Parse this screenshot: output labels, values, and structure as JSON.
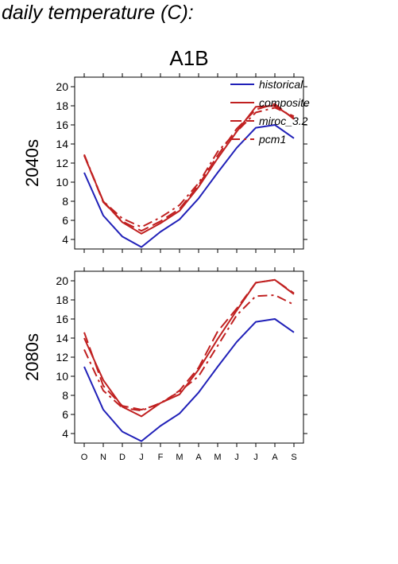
{
  "page_title": "daily temperature (C):",
  "colors": {
    "historical": "#2020b8",
    "composite": "#c02020",
    "miroc": "#c02020",
    "pcm1": "#c02020",
    "axis": "#000000"
  },
  "chart_data": [
    {
      "type": "line",
      "title": "A1B",
      "ylabel": "2040s",
      "xlabel": "",
      "categories": [
        "O",
        "N",
        "D",
        "J",
        "F",
        "M",
        "A",
        "M",
        "J",
        "J",
        "A",
        "S"
      ],
      "ylim": [
        3,
        21
      ],
      "yticks": [
        4,
        6,
        8,
        10,
        12,
        14,
        16,
        18,
        20
      ],
      "grid": false,
      "legend_position": "top-right",
      "series": [
        {
          "name": "historical",
          "style": "solid",
          "color": "#2020b8",
          "values": [
            11.0,
            6.5,
            4.3,
            3.2,
            4.8,
            6.1,
            8.3,
            11.0,
            13.6,
            15.7,
            16.0,
            14.6
          ]
        },
        {
          "name": "composite",
          "style": "solid",
          "color": "#c02020",
          "values": [
            12.8,
            8.0,
            5.8,
            4.6,
            5.7,
            7.0,
            9.5,
            12.5,
            15.3,
            17.9,
            18.0,
            16.7
          ]
        },
        {
          "name": "miroc_3.2",
          "style": "longdash",
          "color": "#c02020",
          "values": [
            12.8,
            7.9,
            5.9,
            4.9,
            5.9,
            7.2,
            9.7,
            12.8,
            15.6,
            17.6,
            18.2,
            16.6
          ]
        },
        {
          "name": "pcm1",
          "style": "dashdot",
          "color": "#c02020",
          "values": [
            12.9,
            8.0,
            6.2,
            5.3,
            6.3,
            7.6,
            9.9,
            13.2,
            15.3,
            17.3,
            17.8,
            16.9
          ]
        }
      ]
    },
    {
      "type": "line",
      "title": "",
      "ylabel": "2080s",
      "xlabel": "",
      "categories": [
        "O",
        "N",
        "D",
        "J",
        "F",
        "M",
        "A",
        "M",
        "J",
        "J",
        "A",
        "S"
      ],
      "ylim": [
        3,
        21
      ],
      "yticks": [
        4,
        6,
        8,
        10,
        12,
        14,
        16,
        18,
        20
      ],
      "grid": false,
      "series": [
        {
          "name": "historical",
          "style": "solid",
          "color": "#2020b8",
          "values": [
            11.0,
            6.5,
            4.2,
            3.2,
            4.8,
            6.1,
            8.3,
            11.0,
            13.6,
            15.7,
            16.0,
            14.6
          ]
        },
        {
          "name": "composite",
          "style": "solid",
          "color": "#c02020",
          "values": [
            14.0,
            9.6,
            6.8,
            5.8,
            7.2,
            8.1,
            10.7,
            13.9,
            16.9,
            19.8,
            20.1,
            18.6
          ]
        },
        {
          "name": "miroc_3.2",
          "style": "longdash",
          "color": "#c02020",
          "values": [
            14.6,
            9.0,
            6.9,
            6.5,
            7.1,
            8.5,
            10.9,
            14.7,
            17.1,
            19.8,
            20.1,
            18.7
          ]
        },
        {
          "name": "pcm1",
          "style": "dashdot",
          "color": "#c02020",
          "values": [
            12.8,
            8.5,
            6.7,
            6.4,
            7.2,
            8.4,
            10.0,
            13.2,
            16.4,
            18.4,
            18.5,
            17.5
          ]
        }
      ]
    }
  ]
}
